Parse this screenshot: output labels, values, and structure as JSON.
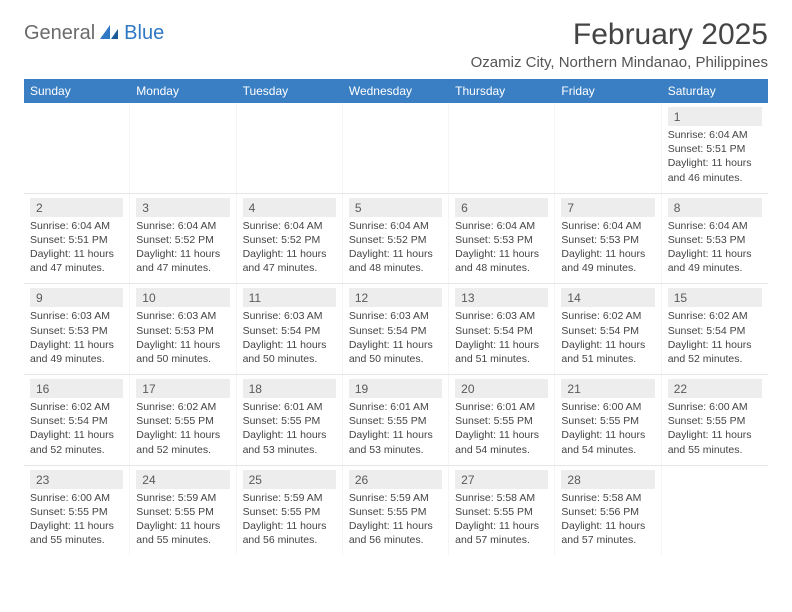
{
  "branding": {
    "logo_part1": "General",
    "logo_part2": "Blue",
    "logo_accent_color": "#2f78c4",
    "logo_text_color": "#6b6b6b"
  },
  "header": {
    "month_title": "February 2025",
    "location": "Ozamiz City, Northern Mindanao, Philippines"
  },
  "colors": {
    "header_bar_bg": "#3a7fc4",
    "header_bar_text": "#ffffff",
    "daynum_bg": "#ededed",
    "row_border": "#e6e6e6",
    "page_bg": "#ffffff",
    "text": "#333333"
  },
  "day_labels": [
    "Sunday",
    "Monday",
    "Tuesday",
    "Wednesday",
    "Thursday",
    "Friday",
    "Saturday"
  ],
  "days": {
    "1": {
      "sunrise": "6:04 AM",
      "sunset": "5:51 PM",
      "daylight": "11 hours and 46 minutes."
    },
    "2": {
      "sunrise": "6:04 AM",
      "sunset": "5:51 PM",
      "daylight": "11 hours and 47 minutes."
    },
    "3": {
      "sunrise": "6:04 AM",
      "sunset": "5:52 PM",
      "daylight": "11 hours and 47 minutes."
    },
    "4": {
      "sunrise": "6:04 AM",
      "sunset": "5:52 PM",
      "daylight": "11 hours and 47 minutes."
    },
    "5": {
      "sunrise": "6:04 AM",
      "sunset": "5:52 PM",
      "daylight": "11 hours and 48 minutes."
    },
    "6": {
      "sunrise": "6:04 AM",
      "sunset": "5:53 PM",
      "daylight": "11 hours and 48 minutes."
    },
    "7": {
      "sunrise": "6:04 AM",
      "sunset": "5:53 PM",
      "daylight": "11 hours and 49 minutes."
    },
    "8": {
      "sunrise": "6:04 AM",
      "sunset": "5:53 PM",
      "daylight": "11 hours and 49 minutes."
    },
    "9": {
      "sunrise": "6:03 AM",
      "sunset": "5:53 PM",
      "daylight": "11 hours and 49 minutes."
    },
    "10": {
      "sunrise": "6:03 AM",
      "sunset": "5:53 PM",
      "daylight": "11 hours and 50 minutes."
    },
    "11": {
      "sunrise": "6:03 AM",
      "sunset": "5:54 PM",
      "daylight": "11 hours and 50 minutes."
    },
    "12": {
      "sunrise": "6:03 AM",
      "sunset": "5:54 PM",
      "daylight": "11 hours and 50 minutes."
    },
    "13": {
      "sunrise": "6:03 AM",
      "sunset": "5:54 PM",
      "daylight": "11 hours and 51 minutes."
    },
    "14": {
      "sunrise": "6:02 AM",
      "sunset": "5:54 PM",
      "daylight": "11 hours and 51 minutes."
    },
    "15": {
      "sunrise": "6:02 AM",
      "sunset": "5:54 PM",
      "daylight": "11 hours and 52 minutes."
    },
    "16": {
      "sunrise": "6:02 AM",
      "sunset": "5:54 PM",
      "daylight": "11 hours and 52 minutes."
    },
    "17": {
      "sunrise": "6:02 AM",
      "sunset": "5:55 PM",
      "daylight": "11 hours and 52 minutes."
    },
    "18": {
      "sunrise": "6:01 AM",
      "sunset": "5:55 PM",
      "daylight": "11 hours and 53 minutes."
    },
    "19": {
      "sunrise": "6:01 AM",
      "sunset": "5:55 PM",
      "daylight": "11 hours and 53 minutes."
    },
    "20": {
      "sunrise": "6:01 AM",
      "sunset": "5:55 PM",
      "daylight": "11 hours and 54 minutes."
    },
    "21": {
      "sunrise": "6:00 AM",
      "sunset": "5:55 PM",
      "daylight": "11 hours and 54 minutes."
    },
    "22": {
      "sunrise": "6:00 AM",
      "sunset": "5:55 PM",
      "daylight": "11 hours and 55 minutes."
    },
    "23": {
      "sunrise": "6:00 AM",
      "sunset": "5:55 PM",
      "daylight": "11 hours and 55 minutes."
    },
    "24": {
      "sunrise": "5:59 AM",
      "sunset": "5:55 PM",
      "daylight": "11 hours and 55 minutes."
    },
    "25": {
      "sunrise": "5:59 AM",
      "sunset": "5:55 PM",
      "daylight": "11 hours and 56 minutes."
    },
    "26": {
      "sunrise": "5:59 AM",
      "sunset": "5:55 PM",
      "daylight": "11 hours and 56 minutes."
    },
    "27": {
      "sunrise": "5:58 AM",
      "sunset": "5:55 PM",
      "daylight": "11 hours and 57 minutes."
    },
    "28": {
      "sunrise": "5:58 AM",
      "sunset": "5:56 PM",
      "daylight": "11 hours and 57 minutes."
    }
  },
  "labels": {
    "sunrise_prefix": "Sunrise: ",
    "sunset_prefix": "Sunset: ",
    "daylight_prefix": "Daylight: "
  },
  "grid": {
    "leading_blanks": 6,
    "num_days": 28,
    "trailing_blanks": 1
  }
}
